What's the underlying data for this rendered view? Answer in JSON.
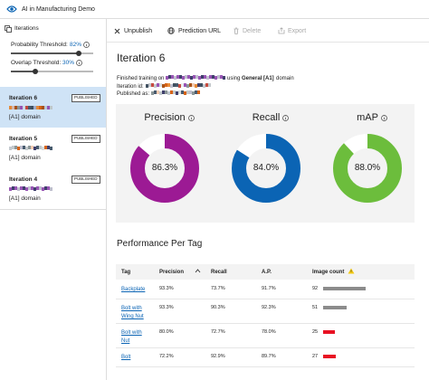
{
  "header": {
    "title": "AI in Manufacturing Demo"
  },
  "sidebar": {
    "title": "Iterations",
    "sliders": [
      {
        "label": "Probability Threshold:",
        "value": 82,
        "value_label": "82%"
      },
      {
        "label": "Overlap Threshold:",
        "value": 30,
        "value_label": "30%"
      }
    ],
    "iterations": [
      {
        "name": "Iteration 6",
        "badge": "PUBLISHED",
        "domain": "[A1] domain",
        "selected": true
      },
      {
        "name": "Iteration 5",
        "badge": "PUBLISHED",
        "domain": "[A1] domain",
        "selected": false
      },
      {
        "name": "Iteration 4",
        "badge": "PUBLISHED",
        "domain": "[A1] domain",
        "selected": false
      }
    ]
  },
  "toolbar": {
    "items": [
      {
        "label": "Unpublish",
        "enabled": true
      },
      {
        "label": "Prediction URL",
        "enabled": true
      },
      {
        "label": "Delete",
        "enabled": false
      },
      {
        "label": "Export",
        "enabled": false
      }
    ]
  },
  "main": {
    "title": "Iteration 6",
    "details": {
      "finished": "Finished training on",
      "using": "using",
      "domain_name": "General [A1]",
      "domain_word": "domain",
      "iteration_id": "Iteration id:",
      "published_as": "Published as:"
    },
    "metrics": [
      {
        "name": "Precision",
        "value": 86.3,
        "value_label": "86.3%",
        "color": "#9c1a94"
      },
      {
        "name": "Recall",
        "value": 84.0,
        "value_label": "84.0%",
        "color": "#0b64b4"
      },
      {
        "name": "mAP",
        "value": 88.0,
        "value_label": "88.0%",
        "color": "#6cbd3c"
      }
    ],
    "performance": {
      "title": "Performance Per Tag",
      "columns": [
        "Tag",
        "Precision",
        "Recall",
        "A.P.",
        "Image count"
      ],
      "rows": [
        {
          "tag": "Backplate",
          "precision": "93.3%",
          "recall": "73.7%",
          "ap": "91.7%",
          "image_count": 92,
          "bar_color": "#8c8c8c"
        },
        {
          "tag": "Bolt with Wing Nut",
          "precision": "93.3%",
          "recall": "90.3%",
          "ap": "92.3%",
          "image_count": 51,
          "bar_color": "#8c8c8c"
        },
        {
          "tag": "Bolt with Nut",
          "precision": "80.0%",
          "recall": "72.7%",
          "ap": "78.0%",
          "image_count": 25,
          "bar_color": "#e81123"
        },
        {
          "tag": "Bolt",
          "precision": "72.2%",
          "recall": "92.9%",
          "ap": "89.7%",
          "image_count": 27,
          "bar_color": "#e81123"
        }
      ]
    }
  }
}
